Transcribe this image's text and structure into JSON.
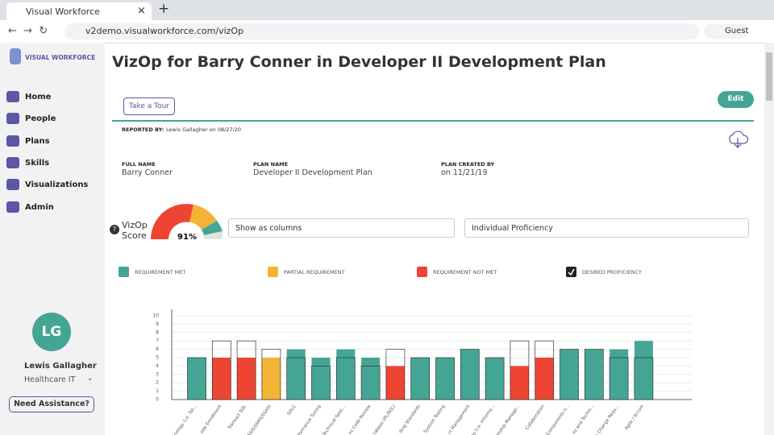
{
  "browser": {
    "tab_title": "Visual Workforce",
    "url": "v2demo.visualworkforce.com/vizOp",
    "profile": "Guest"
  },
  "sidebar": {
    "logo": "VISUAL WORKFORCE",
    "nav": [
      "Home",
      "People",
      "Plans",
      "Skills",
      "Visualizations",
      "Admin"
    ],
    "avatar_initials": "LG",
    "user_name": "Lewis Gallagher",
    "department": "Healthcare IT",
    "help": "Need Assistance?"
  },
  "header": {
    "title": "VizOp for Barry Conner in Developer II Development Plan",
    "tour_button": "Take a Tour",
    "edit_button": "Edit",
    "reported_by_label": "REPORTED BY:",
    "reported_by": "Lewis Gallagher on 08/27/20"
  },
  "details": [
    {
      "label": "FULL NAME",
      "value": "Barry Conner"
    },
    {
      "label": "PLAN NAME",
      "value": "Developer II Development Plan"
    },
    {
      "label": "PLAN CREATED BY",
      "value": "on 11/21/19"
    }
  ],
  "score": {
    "label_lines": [
      "VizOp",
      "Score"
    ],
    "value": "91%"
  },
  "controls": {
    "view": "Show as columns",
    "measure": "Individual Proficiency"
  },
  "chart": {
    "type": "bar",
    "legend": [
      {
        "name": "REQUIREMENT MET",
        "color": "#45a594"
      },
      {
        "name": "PARTIAL REQUIREMENT",
        "color": "#f5b335"
      },
      {
        "name": "REQUIREMENT NOT MET",
        "color": "#ee4433"
      },
      {
        "name": "DESIRED PROFICIENCY",
        "color": "#222222"
      }
    ],
    "categories": [
      "nology (i.e. Tot...",
      "ode Enrollment",
      "Transact SQL",
      "(SSIS|SSRS|SSAS)",
      "SDLC",
      "formance Tuning",
      "Technical Spec...",
      "ns Code Review",
      "tabase (PL/SQL)",
      "ding Standards",
      "System Testing",
      "ct Management",
      "ogy (i.e. Informa...",
      "onship Manage...",
      "Collaboration",
      "Components o...",
      "es and Techni...",
      "e Change Requ...",
      "Agile / Scrum"
    ],
    "values": [
      5,
      5,
      5,
      5,
      6,
      5,
      6,
      5,
      4,
      5,
      5,
      6,
      5,
      4,
      5,
      6,
      6,
      6,
      7
    ],
    "desired": [
      5,
      7,
      7,
      6,
      5,
      4,
      5,
      4,
      6,
      5,
      5,
      6,
      5,
      7,
      7,
      6,
      6,
      5,
      5
    ],
    "colors": [
      "#45a594",
      "#ee4433",
      "#ee4433",
      "#f5b335",
      "#45a594",
      "#45a594",
      "#45a594",
      "#45a594",
      "#ee4433",
      "#45a594",
      "#45a594",
      "#45a594",
      "#45a594",
      "#ee4433",
      "#ee4433",
      "#45a594",
      "#45a594",
      "#45a594",
      "#45a594"
    ],
    "ylim": [
      0,
      10
    ],
    "yticks": [
      0,
      1,
      2,
      3,
      4,
      5,
      6,
      7,
      8,
      9,
      10
    ],
    "grid": true
  }
}
